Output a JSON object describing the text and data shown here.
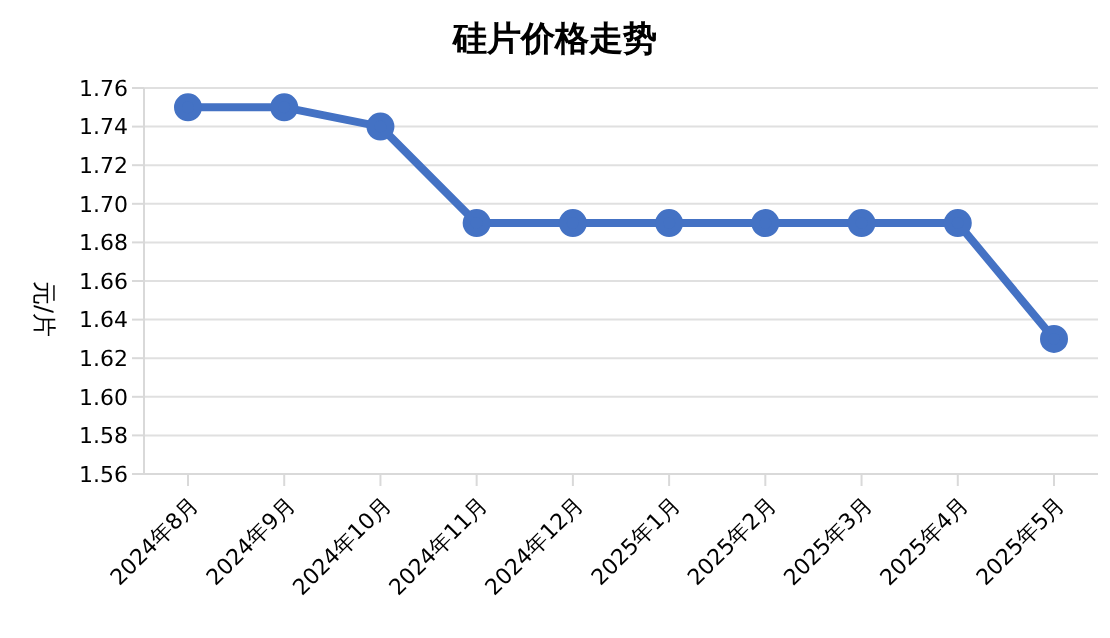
{
  "chart_data": {
    "type": "line",
    "title": "硅片价格走势",
    "ylabel": "元/片",
    "categories": [
      "2024年8月",
      "2024年9月",
      "2024年10月",
      "2024年11月",
      "2024年12月",
      "2025年1月",
      "2025年2月",
      "2025年3月",
      "2025年4月",
      "2025年5月"
    ],
    "series": [
      {
        "color": "#4472c4",
        "values": [
          1.75,
          1.75,
          1.74,
          1.69,
          1.69,
          1.69,
          1.69,
          1.69,
          1.69,
          1.63
        ]
      }
    ],
    "ylim": [
      1.56,
      1.76
    ],
    "yticks": [
      1.56,
      1.58,
      {
        "value": 1.6,
        "label": "1.60"
      },
      1.62,
      1.64,
      1.66,
      1.68,
      {
        "value": 1.7,
        "label": "1.70"
      },
      1.72,
      1.74,
      1.76
    ],
    "grid": "y",
    "legend": false,
    "marker": "circle",
    "line_style": "solid"
  }
}
